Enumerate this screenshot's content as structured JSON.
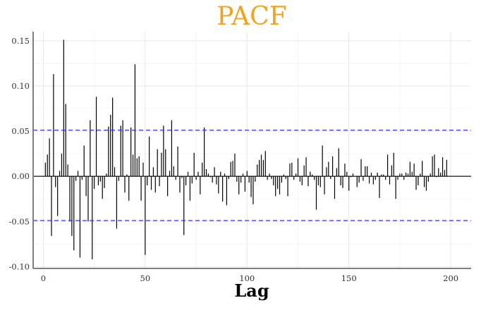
{
  "chart_data": {
    "type": "bar",
    "title": "PACF",
    "xlabel": "Lag",
    "ylabel": "",
    "xlim": [
      -5,
      210
    ],
    "ylim": [
      -0.102,
      0.16
    ],
    "xticks": [
      0,
      50,
      100,
      150,
      200
    ],
    "yticks": [
      -0.1,
      -0.05,
      0.0,
      0.05,
      0.1,
      0.15
    ],
    "ytick_labels": [
      "-0.10",
      "-0.05",
      "0.00",
      "0.05",
      "0.10",
      "0.15"
    ],
    "grid": true,
    "confidence_bounds": [
      0.051,
      -0.049
    ],
    "colors": {
      "title": "#F4A11D",
      "bars": "#000000",
      "bounds": "#3333ee",
      "grid": "#e8e8e8",
      "axis": "#7f7f7f"
    },
    "lags": [
      1,
      2,
      3,
      4,
      5,
      6,
      7,
      8,
      9,
      10,
      11,
      12,
      13,
      14,
      15,
      16,
      17,
      18,
      19,
      20,
      21,
      22,
      23,
      24,
      25,
      26,
      27,
      28,
      29,
      30,
      31,
      32,
      33,
      34,
      35,
      36,
      37,
      38,
      39,
      40,
      41,
      42,
      43,
      44,
      45,
      46,
      47,
      48,
      49,
      50,
      51,
      52,
      53,
      54,
      55,
      56,
      57,
      58,
      59,
      60,
      61,
      62,
      63,
      64,
      65,
      66,
      67,
      68,
      69,
      70,
      71,
      72,
      73,
      74,
      75,
      76,
      77,
      78,
      79,
      80,
      81,
      82,
      83,
      84,
      85,
      86,
      87,
      88,
      89,
      90,
      91,
      92,
      93,
      94,
      95,
      96,
      97,
      98,
      99,
      100,
      101,
      102,
      103,
      104,
      105,
      106,
      107,
      108,
      109,
      110,
      111,
      112,
      113,
      114,
      115,
      116,
      117,
      118,
      119,
      120,
      121,
      122,
      123,
      124,
      125,
      126,
      127,
      128,
      129,
      130,
      131,
      132,
      133,
      134,
      135,
      136,
      137,
      138,
      139,
      140,
      141,
      142,
      143,
      144,
      145,
      146,
      147,
      148,
      149,
      150,
      151,
      152,
      153,
      154,
      155,
      156,
      157,
      158,
      159,
      160,
      161,
      162,
      163,
      164,
      165,
      166,
      167,
      168,
      169,
      170,
      171,
      172,
      173,
      174,
      175,
      176,
      177,
      178,
      179,
      180,
      181,
      182,
      183,
      184,
      185,
      186,
      187,
      188,
      189,
      190,
      191,
      192,
      193,
      194,
      195,
      196,
      197,
      198,
      199,
      200
    ],
    "values": [
      0.015,
      0.024,
      0.042,
      -0.066,
      0.113,
      -0.012,
      -0.044,
      0.006,
      0.025,
      0.151,
      0.08,
      0.013,
      -0.05,
      -0.066,
      -0.082,
      -0.005,
      0.006,
      -0.09,
      -0.004,
      0.034,
      -0.022,
      -0.05,
      0.062,
      -0.092,
      -0.014,
      0.088,
      -0.01,
      -0.006,
      -0.025,
      -0.013,
      0.003,
      0.055,
      0.068,
      0.087,
      0.01,
      -0.058,
      -0.005,
      0.056,
      0.062,
      -0.018,
      0.002,
      -0.027,
      0.054,
      0.024,
      0.124,
      0.02,
      0.022,
      -0.027,
      0.015,
      -0.087,
      -0.01,
      0.044,
      -0.015,
      0.01,
      -0.018,
      0.03,
      -0.011,
      0.026,
      0.056,
      0.03,
      -0.022,
      0.006,
      0.062,
      0.011,
      -0.004,
      0.033,
      -0.018,
      -0.002,
      -0.065,
      -0.01,
      0.005,
      -0.027,
      -0.008,
      0.026,
      -0.004,
      0.005,
      -0.02,
      0.015,
      0.054,
      0.008,
      0.003,
      -0.001,
      -0.007,
      0.01,
      -0.009,
      -0.019,
      0.005,
      -0.028,
      0.003,
      -0.032,
      -0.003,
      0.016,
      0.017,
      0.025,
      -0.006,
      -0.02,
      -0.007,
      0.003,
      -0.017,
      0.006,
      -0.007,
      -0.023,
      -0.031,
      -0.006,
      0.013,
      0.018,
      0.024,
      0.018,
      0.028,
      -0.004,
      0.003,
      -0.003,
      -0.01,
      -0.022,
      -0.014,
      -0.02,
      -0.007,
      0.002,
      -0.003,
      -0.022,
      0.014,
      0.015,
      -0.004,
      0.003,
      0.02,
      -0.006,
      -0.01,
      0.012,
      0.021,
      -0.011,
      0.005,
      0.002,
      -0.004,
      -0.037,
      -0.01,
      -0.012,
      0.034,
      -0.02,
      0.01,
      0.016,
      -0.003,
      0.022,
      -0.025,
      0.009,
      0.031,
      -0.01,
      -0.013,
      0.014,
      0.005,
      -0.016,
      -0.001,
      0.003,
      0.0,
      -0.012,
      -0.007,
      0.019,
      -0.005,
      0.011,
      0.011,
      -0.008,
      0.004,
      -0.009,
      -0.004,
      0.004,
      -0.024,
      0.002,
      0.002,
      -0.004,
      0.024,
      -0.009,
      0.012,
      0.026,
      -0.025,
      -0.004,
      0.003,
      0.003,
      -0.004,
      0.004,
      0.003,
      0.016,
      0.005,
      0.014,
      -0.015,
      -0.01,
      0.003,
      0.017,
      -0.012,
      -0.016,
      -0.006,
      0.003,
      0.022,
      0.024,
      -0.001,
      0.009,
      0.004,
      0.021,
      0.007,
      0.018,
      0.0,
      0.0
    ]
  }
}
